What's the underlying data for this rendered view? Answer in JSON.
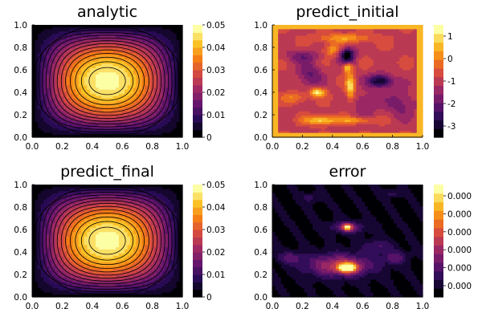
{
  "chart_data": [
    {
      "type": "heatmap",
      "title": "analytic",
      "xlim": [
        0,
        1
      ],
      "ylim": [
        0,
        1
      ],
      "x_ticks": [
        "0.0",
        "0.2",
        "0.4",
        "0.6",
        "0.8",
        "1.0"
      ],
      "y_ticks": [
        "0.0",
        "0.2",
        "0.4",
        "0.6",
        "0.8",
        "1.0"
      ],
      "colorbar": {
        "range": [
          0,
          0.05
        ],
        "ticks": [
          "0",
          "0.01",
          "0.02",
          "0.03",
          "0.04",
          "0.05"
        ]
      },
      "field": "sin(pi x) sin(pi y) bump, peak ~0.05 at (0.5, 0.5)"
    },
    {
      "type": "heatmap",
      "title": "predict_initial",
      "xlim": [
        0,
        1
      ],
      "ylim": [
        0,
        1
      ],
      "x_ticks": [
        "0.0",
        "0.2",
        "0.4",
        "0.6",
        "0.8",
        "1.0"
      ],
      "y_ticks": [
        "0.0",
        "0.2",
        "0.4",
        "0.6",
        "0.8",
        "1.0"
      ],
      "colorbar": {
        "range": [
          -3.5,
          1.5
        ],
        "ticks": [
          "1",
          "0",
          "-1",
          "-2",
          "-3"
        ]
      },
      "field": "irregular noisy field"
    },
    {
      "type": "heatmap",
      "title": "predict_final",
      "xlim": [
        0,
        1
      ],
      "ylim": [
        0,
        1
      ],
      "x_ticks": [
        "0.0",
        "0.2",
        "0.4",
        "0.6",
        "0.8",
        "1.0"
      ],
      "y_ticks": [
        "0.0",
        "0.2",
        "0.4",
        "0.6",
        "0.8",
        "1.0"
      ],
      "colorbar": {
        "range": [
          0,
          0.05
        ],
        "ticks": [
          "0",
          "0.01",
          "0.02",
          "0.03",
          "0.04",
          "0.05"
        ]
      },
      "field": "matches analytic"
    },
    {
      "type": "heatmap",
      "title": "error",
      "xlim": [
        0,
        1
      ],
      "ylim": [
        0,
        1
      ],
      "x_ticks": [
        "0.0",
        "0.2",
        "0.4",
        "0.6",
        "0.8",
        "1.0"
      ],
      "y_ticks": [
        "0.0",
        "0.2",
        "0.4",
        "0.6",
        "0.8",
        "1.0"
      ],
      "colorbar": {
        "range": [
          0,
          1
        ],
        "ticks": [
          "0.000",
          "0.000",
          "0.000",
          "0.000",
          "0.000",
          "0.000"
        ]
      },
      "field": "small error, peaks near (0.5, 0.25) and (0.5, 0.62)"
    }
  ]
}
